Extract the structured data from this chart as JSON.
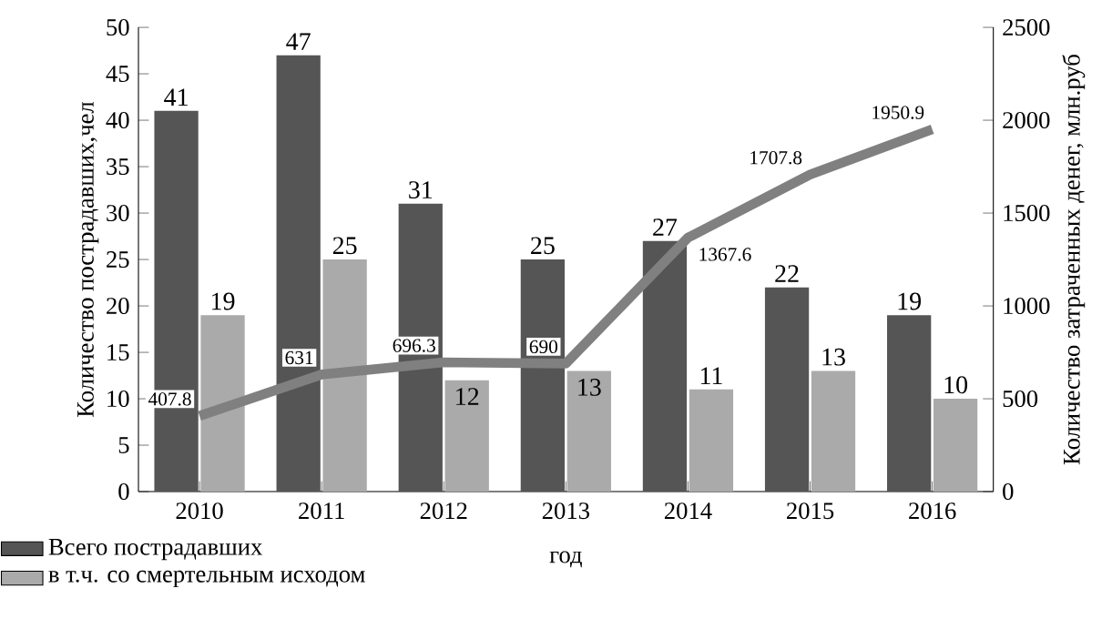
{
  "chart_data": {
    "type": "bar",
    "xlabel": "год",
    "ylabel": "Количество пострадавших,чел",
    "y2label": "Количество затраченных денег, млн.руб",
    "categories": [
      "2010",
      "2011",
      "2012",
      "2013",
      "2014",
      "2015",
      "2016"
    ],
    "series": [
      {
        "name": "Всего пострадавших",
        "color": "#555555",
        "values": [
          41,
          47,
          31,
          25,
          27,
          22,
          19
        ]
      },
      {
        "name": "в т.ч. со смертельным исходом",
        "color": "#aaaaaa",
        "values": [
          19,
          25,
          12,
          13,
          11,
          13,
          10
        ]
      },
      {
        "type": "line",
        "axis": "y2",
        "color": "#808080",
        "values": [
          407.8,
          631,
          696.3,
          690,
          1367.6,
          1707.8,
          1950.9
        ]
      }
    ],
    "ylim": [
      0,
      50
    ],
    "yticks": [
      0,
      5,
      10,
      15,
      20,
      25,
      30,
      35,
      40,
      45,
      50
    ],
    "y2lim": [
      0,
      2500
    ],
    "y2ticks": [
      0,
      500,
      1000,
      1500,
      2000,
      2500
    ],
    "data_labels": true,
    "legend": "bottom left",
    "marker": "none"
  }
}
